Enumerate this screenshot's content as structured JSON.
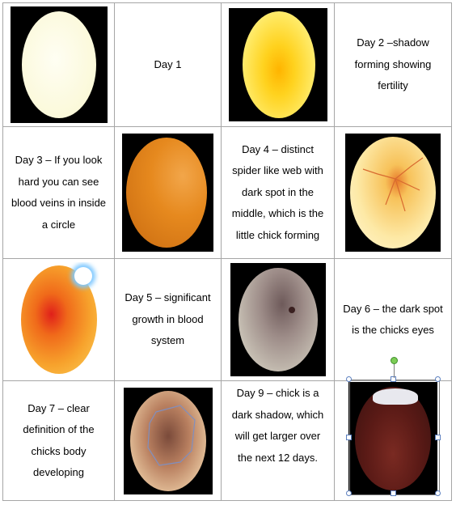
{
  "cells": {
    "day1": "Day 1",
    "day2": "Day 2 –shadow forming showing fertility",
    "day3": "Day 3 – If you look hard you can see blood veins in inside a circle",
    "day4": "Day 4 – distinct spider like web with dark spot in the middle, which is the little chick forming",
    "day5": "Day 5 – significant growth in blood system",
    "day6": "Day 6 – the dark spot is the chicks eyes",
    "day7": "Day 7 – clear definition of the chicks body developing",
    "day9": "Day 9 – chick is a dark shadow, which will get larger over the next 12 days."
  },
  "eggs": {
    "day1": "plain-cream-egg",
    "day2": "yellow-glowing-egg",
    "day3": "orange-egg-faint-veins",
    "day4": "yellow-egg-spider-web",
    "day5": "red-vein-egg",
    "day6": "grey-egg-dark-spot",
    "day7": "egg-outlined-body",
    "day9": "dark-shadow-egg"
  }
}
